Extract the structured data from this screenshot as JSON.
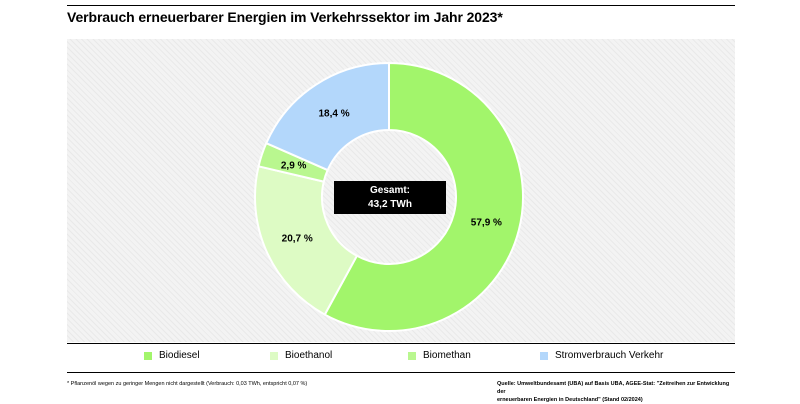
{
  "title": "Verbrauch erneuerbarer Energien im Verkehrssektor im Jahr 2023*",
  "center": {
    "line1": "Gesamt:",
    "line2": "43,2 TWh"
  },
  "chart_data": {
    "type": "pie",
    "title": "Verbrauch erneuerbarer Energien im Verkehrssektor im Jahr 2023*",
    "total": "43,2 TWh",
    "categories": [
      "Biodiesel",
      "Bioethanol",
      "Biomethan",
      "Stromverbrauch Verkehr"
    ],
    "values": [
      57.9,
      20.7,
      2.9,
      18.4
    ],
    "labels": [
      "57,9 %",
      "20,7 %",
      "2,9 %",
      "18,4 %"
    ],
    "colors": [
      "#a2f56b",
      "#ddfbc4",
      "#b9f78f",
      "#b3d7fb"
    ],
    "legend_position": "bottom"
  },
  "legend": [
    {
      "label": "Biodiesel",
      "color": "#a2f56b"
    },
    {
      "label": "Bioethanol",
      "color": "#ddfbc4"
    },
    {
      "label": "Biomethan",
      "color": "#b9f78f"
    },
    {
      "label": "Stromverbrauch Verkehr",
      "color": "#b3d7fb"
    }
  ],
  "footnote": "* Pflanzenöl wegen zu geringer Mengen nicht dargestellt (Verbrauch: 0,03 TWh, entspricht 0,07 %)",
  "source": {
    "line1": "Quelle: Umweltbundesamt (UBA) auf Basis UBA, AGEE-Stat: \"Zeitreihen zur Entwicklung der",
    "line2": "erneuerbaren Energien in Deutschland\" (Stand 02/2024)"
  }
}
